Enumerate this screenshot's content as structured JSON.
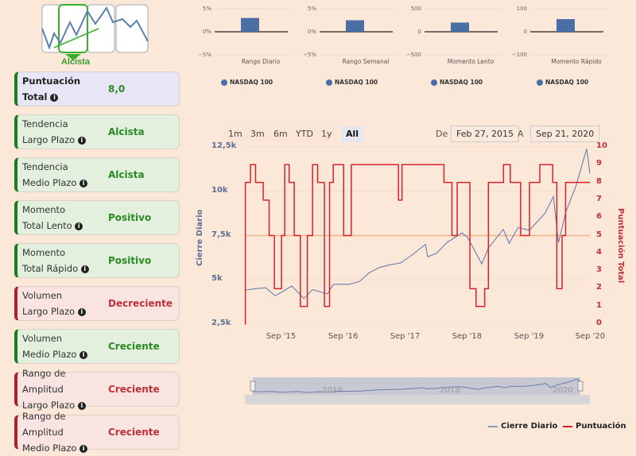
{
  "logo": {
    "label": "Alcista"
  },
  "cards": [
    {
      "l1": "Puntuación",
      "l2": "Total",
      "value": "8,0",
      "tone": "b"
    },
    {
      "l1": "Tendencia",
      "l2": "Largo Plazo",
      "value": "Alcista",
      "tone": "g"
    },
    {
      "l1": "Tendencia",
      "l2": "Medio Plazo",
      "value": "Alcista",
      "tone": "g"
    },
    {
      "l1": "Momento",
      "l2": "Total Lento",
      "value": "Positivo",
      "tone": "g"
    },
    {
      "l1": "Momento",
      "l2": "Total Rápido",
      "value": "Positivo",
      "tone": "g"
    },
    {
      "l1": "Volumen",
      "l2": "Largo Plazo",
      "value": "Decreciente",
      "tone": "r"
    },
    {
      "l1": "Volumen",
      "l2": "Medio Plazo",
      "value": "Creciente",
      "tone": "g"
    },
    {
      "l1": "Rango de Amplitud",
      "l2": "Largo Plazo",
      "value": "Creciente",
      "tone": "r"
    },
    {
      "l1": "Rango de Amplitud",
      "l2": "Medio Plazo",
      "value": "Creciente",
      "tone": "r"
    }
  ],
  "range_selector": {
    "buttons": [
      "1m",
      "3m",
      "6m",
      "YTD",
      "1y",
      "All"
    ],
    "active": "All",
    "from_label": "De",
    "from": "Feb 27, 2015",
    "to_label": "A",
    "to": "Sep 21, 2020"
  },
  "chart_data": [
    {
      "type": "bar",
      "category": "Rango Diario",
      "series": "NASDAQ 100",
      "value": 3,
      "unit": "%",
      "ticks": [
        "5%",
        "0%",
        "−5%"
      ],
      "ylim": [
        -5,
        5
      ]
    },
    {
      "type": "bar",
      "category": "Rango Semanal",
      "series": "NASDAQ 100",
      "value": 2.5,
      "unit": "%",
      "ticks": [
        "5%",
        "0%",
        "−5%"
      ],
      "ylim": [
        -5,
        5
      ]
    },
    {
      "type": "bar",
      "category": "Momento Lento",
      "series": "NASDAQ 100",
      "value": 200,
      "ticks": [
        "500",
        "0",
        "−500"
      ],
      "ylim": [
        -500,
        500
      ]
    },
    {
      "type": "bar",
      "category": "Momento Rápido",
      "series": "NASDAQ 100",
      "value": 55,
      "ticks": [
        "100",
        "0",
        "−100"
      ],
      "ylim": [
        -100,
        100
      ]
    },
    {
      "type": "line",
      "xlim": [
        "2015-02-27",
        "2020-09-21"
      ],
      "x_ticks": [
        "Sep '15",
        "Sep '16",
        "Sep '17",
        "Sep '18",
        "Sep '19",
        "Sep '20"
      ],
      "y_left": {
        "label": "Cierre Diario",
        "ticks": [
          "12,5k",
          "10k",
          "7,5k",
          "5k",
          "2,5k"
        ],
        "ylim": [
          2500,
          12500
        ]
      },
      "y_right": {
        "label": "Puntuación Total",
        "ticks": [
          "10",
          "9",
          "8",
          "7",
          "6",
          "5",
          "4",
          "3",
          "2",
          "1",
          "0"
        ],
        "ylim": [
          0,
          10
        ]
      },
      "reference_line": {
        "value": 7500,
        "color": "#f0b48a"
      },
      "navigator_ticks": [
        "2016",
        "2018",
        "2020"
      ],
      "series": [
        {
          "name": "Cierre Diario",
          "color": "#5a74a8",
          "axis": "left",
          "points": [
            [
              "2015-03-01",
              4420
            ],
            [
              "2015-05-01",
              4500
            ],
            [
              "2015-07-01",
              4550
            ],
            [
              "2015-08-25",
              4100
            ],
            [
              "2015-10-01",
              4300
            ],
            [
              "2015-12-01",
              4650
            ],
            [
              "2016-02-10",
              3950
            ],
            [
              "2016-04-01",
              4450
            ],
            [
              "2016-06-27",
              4200
            ],
            [
              "2016-08-01",
              4750
            ],
            [
              "2016-11-01",
              4750
            ],
            [
              "2017-01-01",
              4900
            ],
            [
              "2017-03-01",
              5400
            ],
            [
              "2017-05-01",
              5700
            ],
            [
              "2017-07-01",
              5850
            ],
            [
              "2017-09-01",
              5950
            ],
            [
              "2017-11-01",
              6350
            ],
            [
              "2018-01-26",
              7000
            ],
            [
              "2018-02-08",
              6300
            ],
            [
              "2018-04-01",
              6500
            ],
            [
              "2018-06-01",
              7100
            ],
            [
              "2018-08-29",
              7650
            ],
            [
              "2018-10-01",
              7400
            ],
            [
              "2018-12-24",
              5900
            ],
            [
              "2019-02-01",
              6800
            ],
            [
              "2019-04-30",
              7850
            ],
            [
              "2019-06-03",
              7050
            ],
            [
              "2019-07-26",
              7950
            ],
            [
              "2019-10-01",
              7800
            ],
            [
              "2019-12-31",
              8750
            ],
            [
              "2020-02-19",
              9700
            ],
            [
              "2020-03-20",
              7100
            ],
            [
              "2020-05-01",
              8800
            ],
            [
              "2020-07-01",
              10300
            ],
            [
              "2020-09-02",
              12400
            ],
            [
              "2020-09-21",
              11000
            ]
          ]
        },
        {
          "name": "Puntuación",
          "color": "#d8222a",
          "axis": "right",
          "step": true,
          "points": [
            [
              "2015-02-27",
              0
            ],
            [
              "2015-03-02",
              8
            ],
            [
              "2015-04-01",
              9
            ],
            [
              "2015-05-01",
              8
            ],
            [
              "2015-06-15",
              7
            ],
            [
              "2015-07-20",
              5
            ],
            [
              "2015-08-20",
              2
            ],
            [
              "2015-10-01",
              5
            ],
            [
              "2015-10-20",
              9
            ],
            [
              "2015-11-15",
              8
            ],
            [
              "2015-12-15",
              5
            ],
            [
              "2016-01-20",
              1
            ],
            [
              "2016-03-01",
              5
            ],
            [
              "2016-04-01",
              9
            ],
            [
              "2016-05-01",
              8
            ],
            [
              "2016-06-10",
              1
            ],
            [
              "2016-07-10",
              8
            ],
            [
              "2016-08-01",
              9
            ],
            [
              "2016-10-01",
              5
            ],
            [
              "2016-11-15",
              9
            ],
            [
              "2017-08-20",
              7
            ],
            [
              "2017-09-10",
              9
            ],
            [
              "2018-05-15",
              8
            ],
            [
              "2018-07-01",
              5
            ],
            [
              "2018-08-01",
              8
            ],
            [
              "2018-10-15",
              2
            ],
            [
              "2018-11-20",
              1
            ],
            [
              "2019-01-10",
              2
            ],
            [
              "2019-02-01",
              8
            ],
            [
              "2019-05-01",
              9
            ],
            [
              "2019-06-10",
              8
            ],
            [
              "2019-08-10",
              5
            ],
            [
              "2019-10-01",
              8
            ],
            [
              "2019-12-01",
              9
            ],
            [
              "2020-02-15",
              8
            ],
            [
              "2020-03-10",
              2
            ],
            [
              "2020-04-10",
              5
            ],
            [
              "2020-05-01",
              8
            ]
          ]
        }
      ]
    }
  ]
}
